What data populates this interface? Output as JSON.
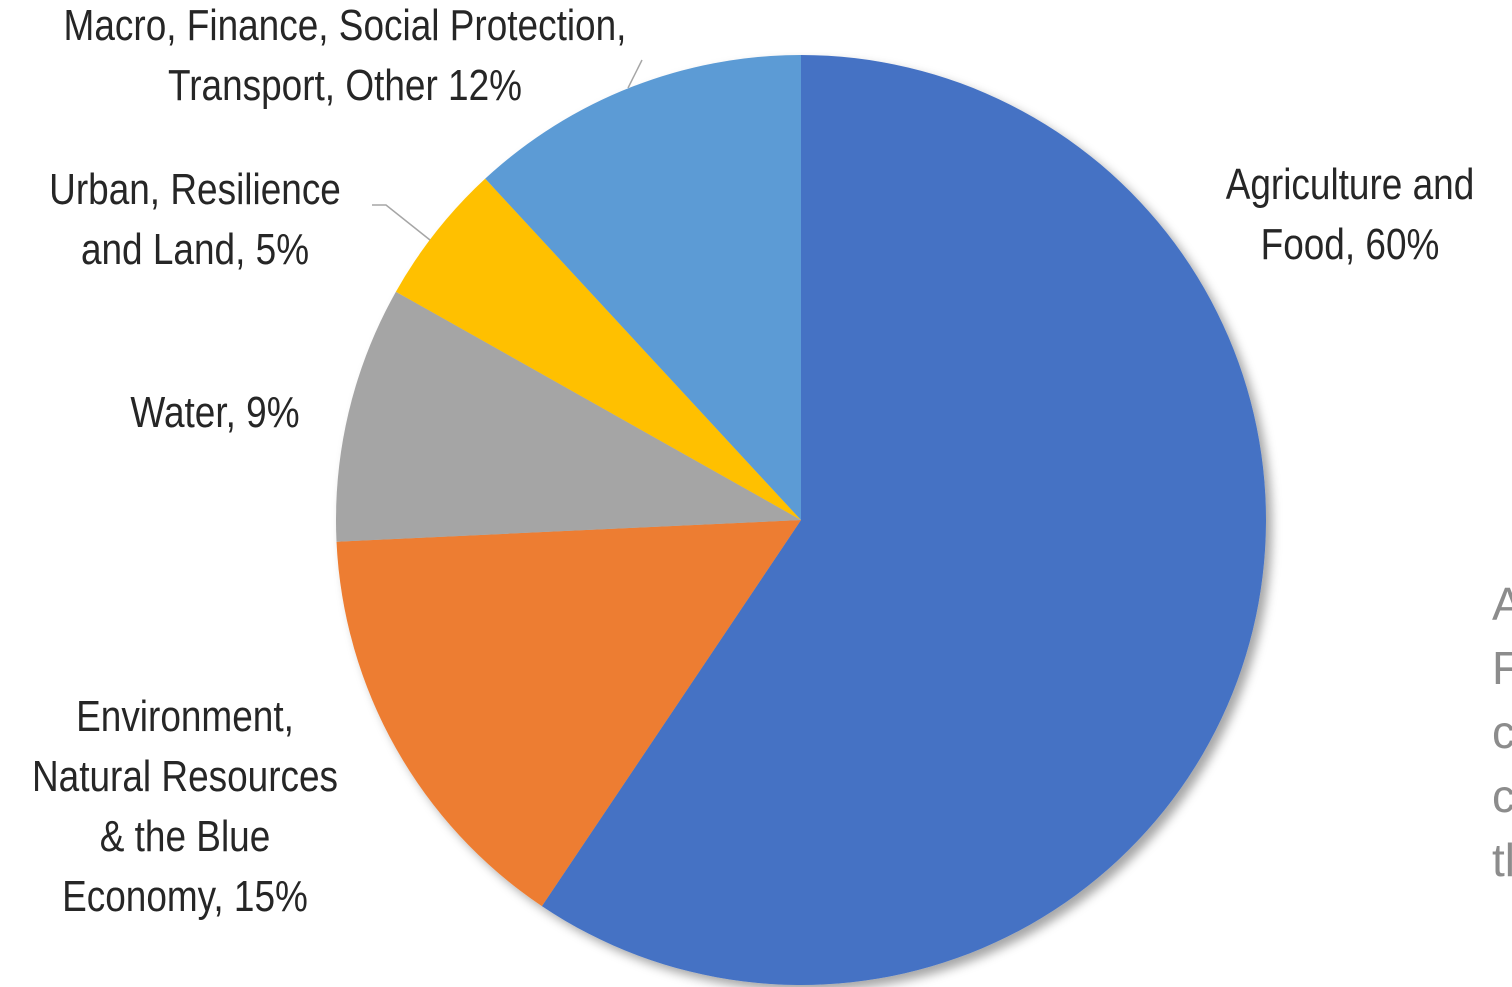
{
  "chart_data": {
    "type": "pie",
    "title": "",
    "slices": [
      {
        "name": "Agriculture and Food",
        "value": 60,
        "label_lines": [
          "Agriculture and",
          "Food, 60%"
        ],
        "color": "#4472C4"
      },
      {
        "name": "Environment, Natural Resources & the Blue Economy",
        "value": 15,
        "label_lines": [
          "Environment,",
          "Natural Resources",
          "& the Blue",
          "Economy, 15%"
        ],
        "color": "#ED7D31"
      },
      {
        "name": "Water",
        "value": 9,
        "label_lines": [
          "Water, 9%"
        ],
        "color": "#A5A5A5"
      },
      {
        "name": "Urban, Resilience and Land",
        "value": 5,
        "label_lines": [
          "Urban, Resilience",
          "and Land, 5%"
        ],
        "color": "#FFC000"
      },
      {
        "name": "Macro, Finance, Social Protection, Transport, Other",
        "value": 12,
        "label_lines": [
          "Macro, Finance, Social Protection,",
          "Transport, Other 12%"
        ],
        "color": "#5B9BD5"
      }
    ],
    "start_angle_deg": 0,
    "direction": "clockwise",
    "legend": "none"
  },
  "side_text": {
    "color": "#8C8C8C",
    "visible_lines": [
      "A",
      "F",
      "c",
      "c",
      "tl"
    ]
  }
}
